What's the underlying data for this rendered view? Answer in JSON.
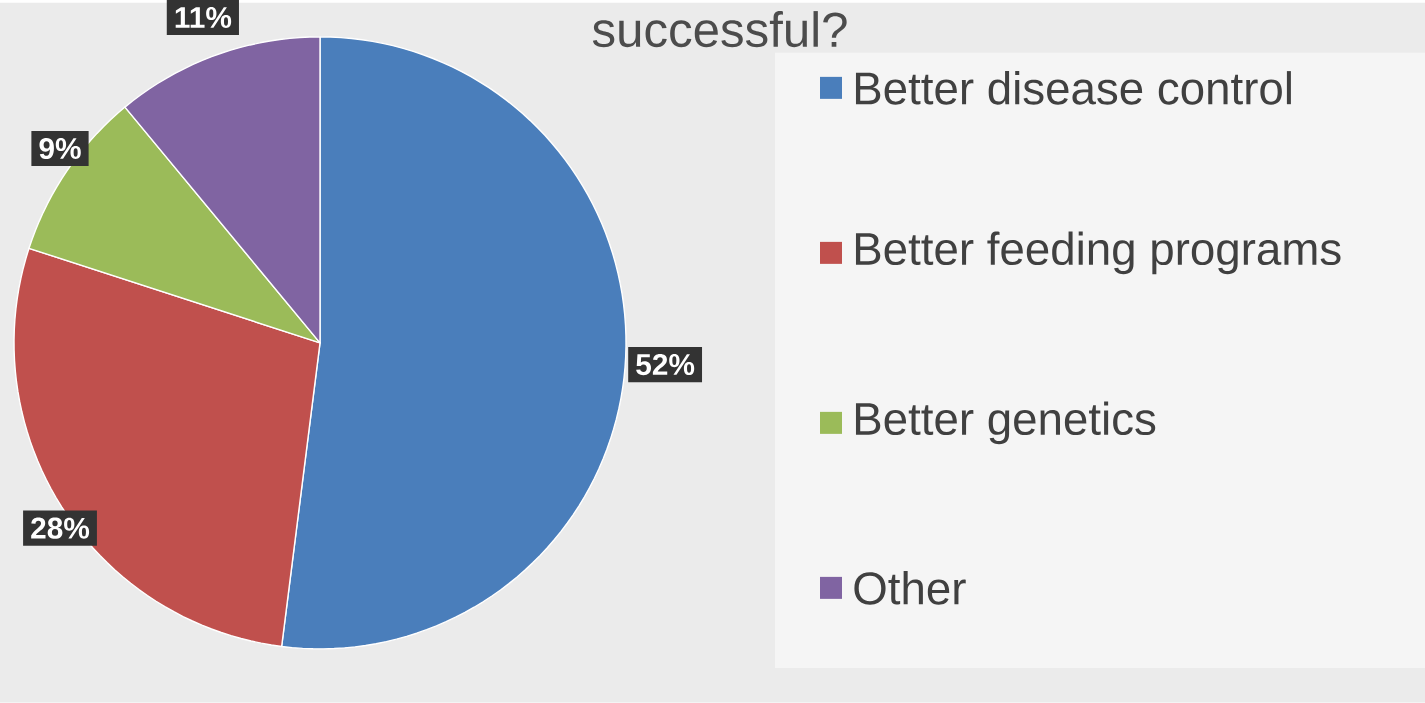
{
  "chart_data": {
    "type": "pie",
    "title": "successful?",
    "categories": [
      "Better disease control",
      "Better feeding programs",
      "Better genetics",
      "Other"
    ],
    "values": [
      52,
      28,
      9,
      11
    ],
    "colors": [
      "#4a7ebb",
      "#c0504d",
      "#9bbb59",
      "#8064a2"
    ],
    "value_labels": [
      "52%",
      "28%",
      "9%",
      "11%"
    ],
    "legend": "right"
  }
}
